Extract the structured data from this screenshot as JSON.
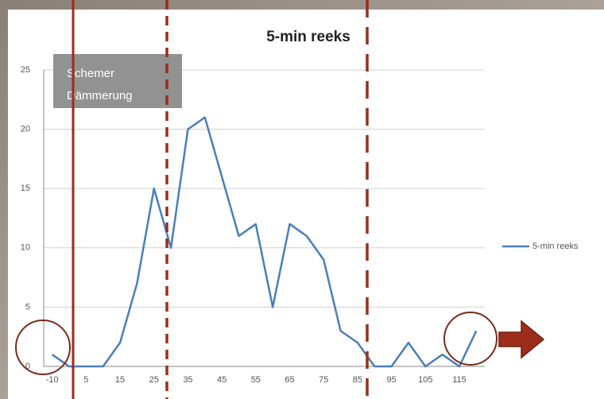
{
  "chart_data": {
    "type": "line",
    "title": "5-min reeks",
    "categories": [
      "-10",
      null,
      "5",
      null,
      "15",
      null,
      "25",
      null,
      "35",
      null,
      "45",
      null,
      "55",
      null,
      "65",
      null,
      "75",
      null,
      "85",
      null,
      "95",
      null,
      "105",
      null,
      "115",
      null
    ],
    "series": [
      {
        "name": "5-min reeks",
        "color": "#4a7ebb",
        "values": [
          1,
          0,
          0,
          0,
          2,
          7,
          15,
          10,
          20,
          21,
          16,
          11,
          12,
          5,
          12,
          11,
          9,
          3,
          2,
          0,
          0,
          2,
          0,
          1,
          0,
          3
        ]
      }
    ],
    "ylim": [
      0,
      25
    ],
    "yticks": [
      0,
      5,
      10,
      15,
      20,
      25
    ],
    "grid": true,
    "legend": "right",
    "annotations": [
      "Schemer",
      "Dämmerung"
    ]
  }
}
